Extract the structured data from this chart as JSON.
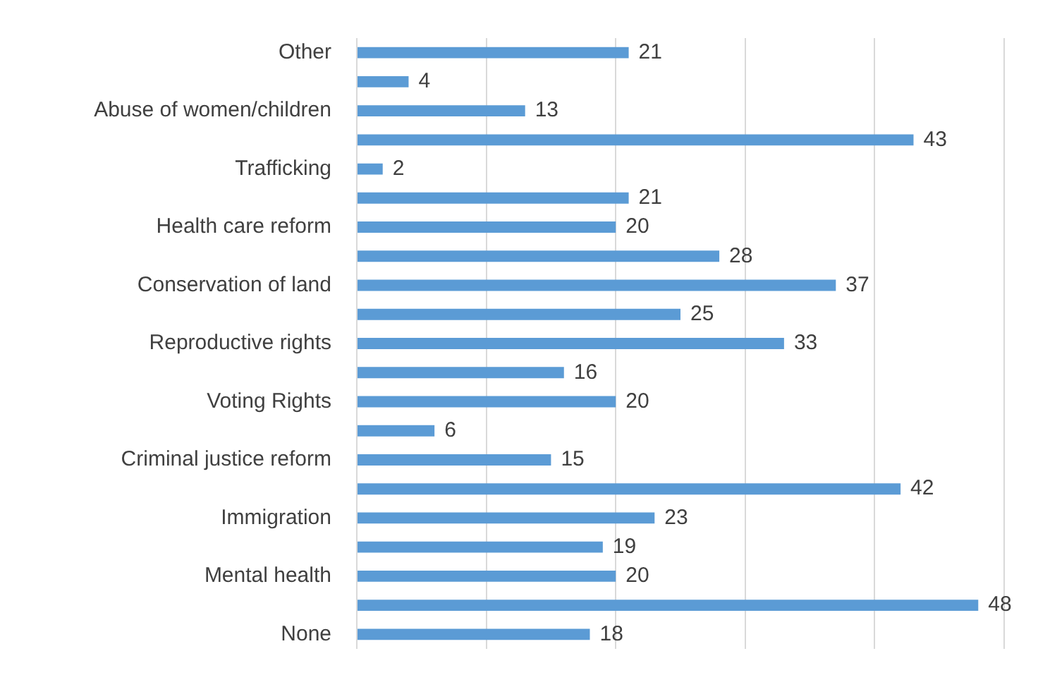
{
  "chart_data": {
    "type": "bar",
    "orientation": "horizontal",
    "categories": [
      "Other",
      null,
      "Abuse of women/children",
      null,
      "Trafficking",
      null,
      "Health care reform",
      null,
      "Conservation of land",
      null,
      "Reproductive rights",
      null,
      "Voting Rights",
      null,
      "Criminal justice reform",
      null,
      "Immigration",
      null,
      "Mental health",
      null,
      "None"
    ],
    "values": [
      21,
      4,
      13,
      43,
      2,
      21,
      20,
      28,
      37,
      25,
      33,
      16,
      20,
      6,
      15,
      42,
      23,
      19,
      20,
      48,
      18
    ],
    "color": "#5b9bd5",
    "xlim": [
      0,
      50
    ],
    "xticks": [
      {
        "value": 0,
        "label": null
      },
      {
        "value": 10,
        "label": null
      },
      {
        "value": 20,
        "label": null
      },
      {
        "value": 30,
        "label": null
      },
      {
        "value": 40,
        "label": null
      },
      {
        "value": 50,
        "label": null
      }
    ],
    "grid": "x",
    "tick_labels": "y",
    "data_labels": true
  }
}
